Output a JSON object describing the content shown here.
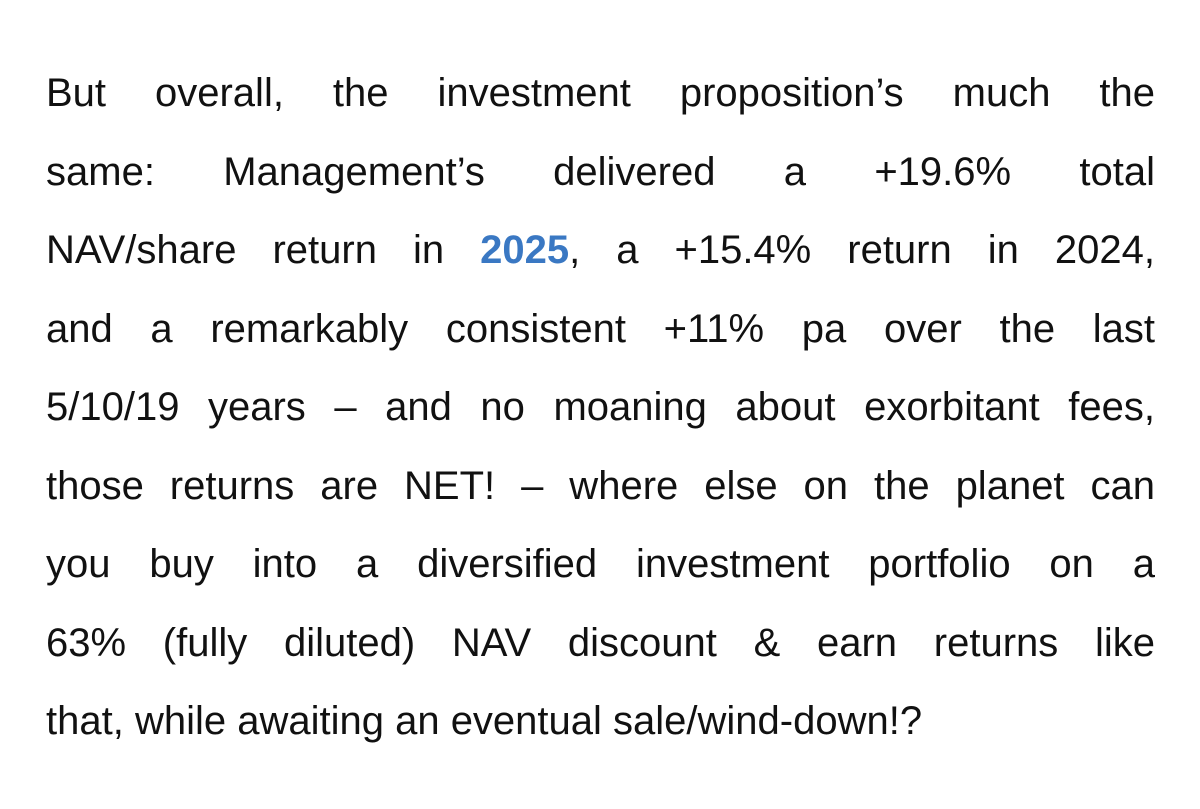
{
  "paragraph": {
    "lines": [
      "But overall, the investment proposition’s much the",
      "same: Management’s delivered a +19.6% total",
      {
        "before": "NAV/share return in ",
        "link": "2025",
        "after": ", a +15.4% return in 2024,"
      },
      "and a remarkably consistent +11% pa over the last",
      "5/10/19 years – and no moaning about exorbitant fees,",
      "those returns are NET! – where else on the planet can",
      "you buy into a diversified investment portfolio on a",
      "63% (fully diluted) NAV discount & earn returns like",
      "that, while awaiting an eventual sale/wind-down!?"
    ]
  }
}
